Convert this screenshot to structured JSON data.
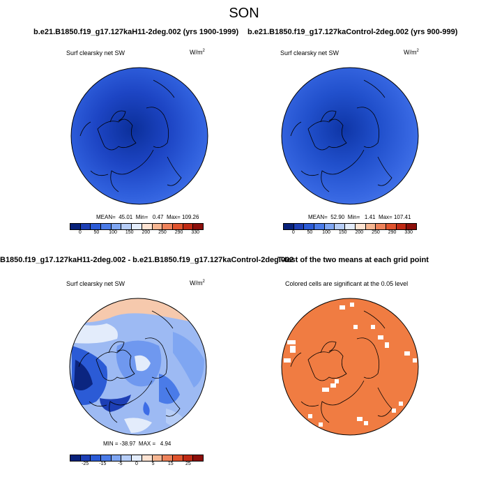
{
  "title": "SON",
  "panels": {
    "top_left": {
      "header": "b.e21.B1850.f19_g17.127kaH11-2deg.002 (yrs 1900-1999)",
      "variable": "Surf clearsky net SW",
      "units": "W/m",
      "units_exp": "2",
      "stats": "MEAN=  45.01  Min=   0.47  Max= 109.26",
      "colorbar_ticks": [
        "0",
        "50",
        "100",
        "150",
        "200",
        "250",
        "290",
        "330"
      ]
    },
    "top_right": {
      "header": "b.e21.B1850.f19_g17.127kaControl-2deg.002 (yrs 900-999)",
      "variable": "Surf clearsky net SW",
      "units": "W/m",
      "units_exp": "2",
      "stats": "MEAN=  52.90  Min=   1.41  Max= 107.41",
      "colorbar_ticks": [
        "0",
        "50",
        "100",
        "150",
        "200",
        "250",
        "290",
        "330"
      ]
    },
    "bottom_left": {
      "header": "B1850.f19_g17.127kaH11-2deg.002 - b.e21.B1850.f19_g17.127kaControl-2deg.002",
      "variable": "Surf clearsky net SW",
      "units": "W/m",
      "units_exp": "2",
      "stats": "MIN = -38.97  MAX =   4.94",
      "colorbar_ticks": [
        "-25",
        "-15",
        "-5",
        "0",
        "5",
        "15",
        "25"
      ]
    },
    "bottom_right": {
      "header": "T-test of the two means at each grid point",
      "subtitle": "Colored cells are significant at the 0.05 level"
    }
  },
  "colors": {
    "abs_scale": [
      "#08217a",
      "#1d3fb5",
      "#2b5bd6",
      "#4a7be8",
      "#7fa6f2",
      "#b6cdf7",
      "#e3ecfb",
      "#fde3d2",
      "#f6b692",
      "#ee825a",
      "#e0532d",
      "#c02a14",
      "#8c0f0a"
    ],
    "diff_scale": [
      "#08217a",
      "#1d3fb5",
      "#2b5bd6",
      "#4a7be8",
      "#7fa6f2",
      "#b6cdf7",
      "#e3ecfb",
      "#fde3d2",
      "#f6b692",
      "#ee825a",
      "#e0532d",
      "#c02a14",
      "#8c0f0a"
    ],
    "sig_color": "#f07c42"
  }
}
